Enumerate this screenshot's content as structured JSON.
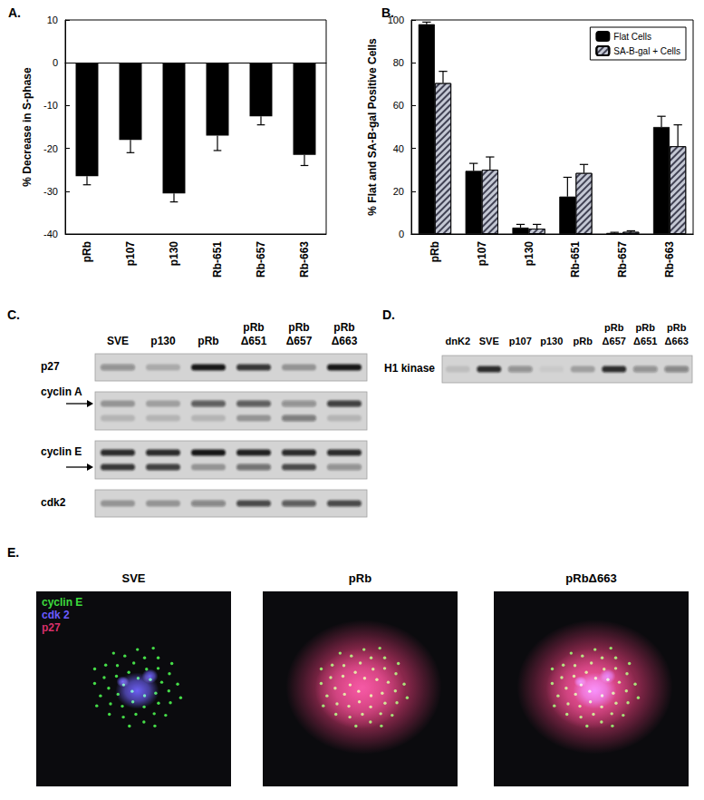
{
  "chart_data": [
    {
      "type": "bar",
      "title": "A.",
      "categories": [
        "pRb",
        "p107",
        "p130",
        "Rb-651",
        "Rb-657",
        "Rb-663"
      ],
      "values": [
        -26.5,
        -18,
        -30.5,
        -17,
        -12.5,
        -21.5
      ],
      "errors": [
        2,
        3,
        2,
        3.5,
        2,
        2.5
      ],
      "color": "#000000",
      "ylabel": "% Decrease in S-phase",
      "ylim": [
        -40,
        10
      ],
      "yticks": [
        -40,
        -30,
        -20,
        -10,
        0,
        10
      ],
      "grid": false
    },
    {
      "type": "bar",
      "title": "B.",
      "categories": [
        "pRb",
        "p107",
        "p130",
        "Rb-651",
        "Rb-657",
        "Rb-663"
      ],
      "series": [
        {
          "name": "Flat Cells",
          "color": "#000000",
          "values": [
            98,
            29.5,
            3,
            17.5,
            0.5,
            50
          ],
          "errors": [
            1,
            3.5,
            1.5,
            9,
            0.3,
            5
          ]
        },
        {
          "name": "SA-B-gal + Cells",
          "color": "#c4c8d4",
          "values": [
            70.5,
            30,
            2.5,
            28.5,
            1,
            41
          ],
          "errors": [
            5.5,
            6,
            2,
            4,
            0.5,
            10
          ]
        }
      ],
      "ylabel": "% Flat and SA-B-gal Positive Cells",
      "ylim": [
        0,
        100
      ],
      "yticks": [
        0,
        20,
        40,
        60,
        80,
        100
      ],
      "legend": "top-right",
      "grid": false
    }
  ],
  "blots": [
    {
      "title": "C.",
      "lanes": [
        "SVE",
        "p130",
        "pRb",
        "pRb Δ651",
        "pRb Δ657",
        "pRb Δ663"
      ],
      "rows": [
        {
          "label": "p27",
          "bands": [
            {
              "intensity": [
                0.35,
                0.2,
                0.95,
                0.8,
                0.3,
                0.95
              ]
            }
          ]
        },
        {
          "label": "cyclin A",
          "bands": [
            {
              "intensity": [
                0.3,
                0.25,
                0.6,
                0.6,
                0.35,
                0.75
              ],
              "arrow": true
            },
            {
              "intensity": [
                0.15,
                0.15,
                0.15,
                0.3,
                0.45,
                0.15
              ]
            }
          ]
        },
        {
          "label": "cyclin E",
          "bands": [
            {
              "intensity": [
                0.85,
                0.85,
                0.95,
                0.9,
                0.85,
                0.85
              ]
            },
            {
              "intensity": [
                0.8,
                0.75,
                0.3,
                0.5,
                0.7,
                0.35
              ],
              "arrow": true
            }
          ]
        },
        {
          "label": "cdk2",
          "bands": [
            {
              "intensity": [
                0.3,
                0.3,
                0.4,
                0.7,
                0.6,
                0.7
              ]
            }
          ]
        }
      ]
    },
    {
      "title": "D.",
      "lanes": [
        "dnK2",
        "SVE",
        "p107",
        "p130",
        "pRb",
        "pRb Δ657",
        "pRb Δ651",
        "pRb Δ663"
      ],
      "rows": [
        {
          "label": "H1 kinase",
          "bands": [
            {
              "intensity": [
                0.1,
                0.85,
                0.35,
                0.05,
                0.25,
                0.85,
                0.35,
                0.4
              ]
            }
          ]
        }
      ]
    }
  ],
  "micrographs": {
    "title": "E.",
    "stains": [
      {
        "name": "cyclin E",
        "color": "#3ddc3d"
      },
      {
        "name": "cdk 2",
        "color": "#6a5cff"
      },
      {
        "name": "p27",
        "color": "#d8306a"
      }
    ],
    "images": [
      {
        "label": "SVE",
        "signals": [
          "cyclin E",
          "cdk 2"
        ]
      },
      {
        "label": "pRb",
        "signals": [
          "p27",
          "cyclin E"
        ]
      },
      {
        "label": "pRbΔ663",
        "signals": [
          "p27",
          "cdk 2",
          "cyclin E"
        ]
      }
    ]
  }
}
